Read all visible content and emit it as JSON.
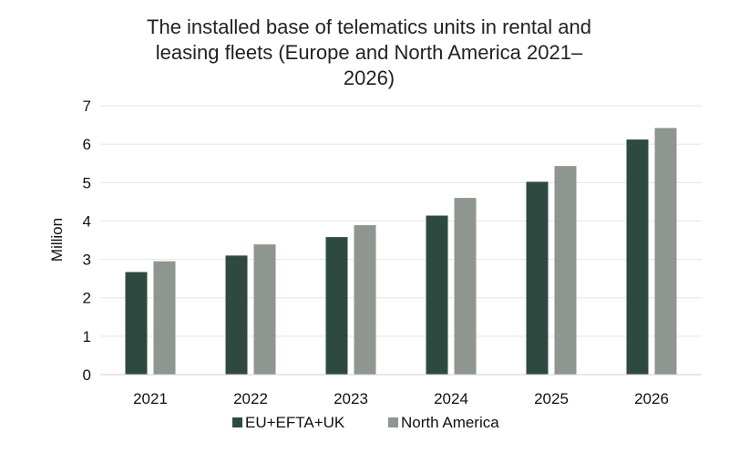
{
  "chart_data": {
    "type": "bar",
    "title_lines": [
      "The installed base of telematics units in rental and",
      "leasing fleets (Europe and North America 2021–",
      "2026)"
    ],
    "ylabel": "Million",
    "xlabel": "",
    "categories": [
      "2021",
      "2022",
      "2023",
      "2024",
      "2025",
      "2026"
    ],
    "ylim": [
      0,
      7
    ],
    "yticks": [
      "0",
      "1",
      "2",
      "3",
      "4",
      "5",
      "6",
      "7"
    ],
    "grid": true,
    "legend_position": "bottom",
    "series": [
      {
        "name": "EU+EFTA+UK",
        "color": "#2e4a40",
        "values": [
          2.67,
          3.1,
          3.58,
          4.14,
          5.02,
          6.12
        ]
      },
      {
        "name": "North America",
        "color": "#8e968f",
        "values": [
          2.95,
          3.39,
          3.89,
          4.6,
          5.43,
          6.42
        ]
      }
    ]
  }
}
